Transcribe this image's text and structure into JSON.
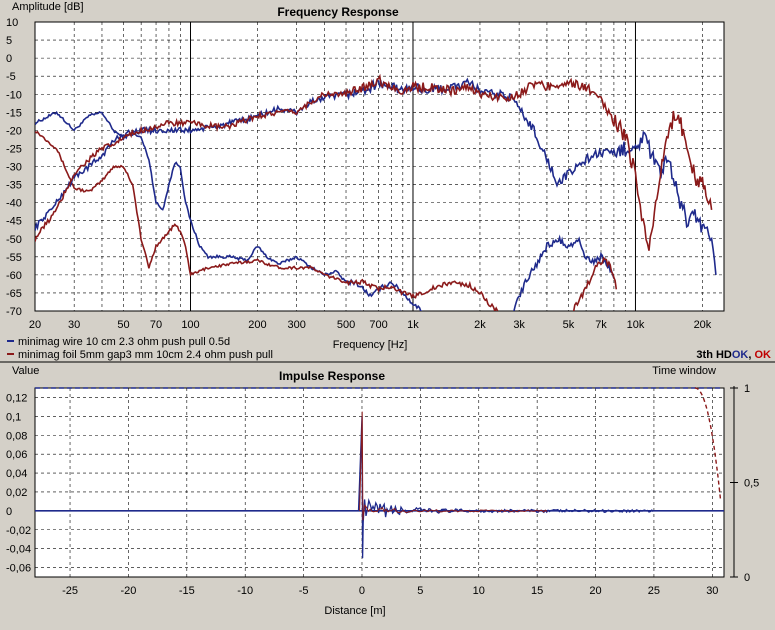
{
  "colors": {
    "series1": "#1f2a8c",
    "series2": "#8b1a1a",
    "ok": "#c00000",
    "okAlt": "#1f2a8c"
  },
  "chart_data": [
    {
      "type": "line",
      "title": "Frequency Response",
      "xlabel": "Frequency [Hz]",
      "ylabel": "Amplitude [dB]",
      "xscale": "log",
      "xlim": [
        20,
        25000
      ],
      "ylim": [
        -70,
        10
      ],
      "grid": true,
      "xticks": [
        {
          "v": 20,
          "t": "20"
        },
        {
          "v": 30,
          "t": "30"
        },
        {
          "v": 50,
          "t": "50"
        },
        {
          "v": 70,
          "t": "70"
        },
        {
          "v": 100,
          "t": "100"
        },
        {
          "v": 200,
          "t": "200"
        },
        {
          "v": 300,
          "t": "300"
        },
        {
          "v": 500,
          "t": "500"
        },
        {
          "v": 700,
          "t": "700"
        },
        {
          "v": 1000,
          "t": "1k"
        },
        {
          "v": 2000,
          "t": "2k"
        },
        {
          "v": 3000,
          "t": "3k"
        },
        {
          "v": 5000,
          "t": "5k"
        },
        {
          "v": 7000,
          "t": "7k"
        },
        {
          "v": 10000,
          "t": "10k"
        },
        {
          "v": 20000,
          "t": "20k"
        }
      ],
      "yticks": [
        10,
        5,
        0,
        -5,
        -10,
        -15,
        -20,
        -25,
        -30,
        -35,
        -40,
        -45,
        -50,
        -55,
        -60,
        -65,
        -70
      ],
      "legend": "bottom-left",
      "status": {
        "prefix": "3th HD",
        "ok1": "OK",
        "sep": ", ",
        "ok2": "OK"
      },
      "series": [
        {
          "name": "minimag wire 10 cm 2.3 ohm push pull 0.5d",
          "color": "#1f2a8c",
          "points": [
            [
              20,
              -18
            ],
            [
              25,
              -15
            ],
            [
              30,
              -20
            ],
            [
              35,
              -16
            ],
            [
              40,
              -15
            ],
            [
              45,
              -20
            ],
            [
              50,
              -22
            ],
            [
              55,
              -21
            ],
            [
              60,
              -22
            ],
            [
              65,
              -28
            ],
            [
              70,
              -40
            ],
            [
              75,
              -42
            ],
            [
              80,
              -35
            ],
            [
              85,
              -29
            ],
            [
              90,
              -30
            ],
            [
              95,
              -40
            ],
            [
              100,
              -45
            ],
            [
              110,
              -52
            ],
            [
              120,
              -55
            ],
            [
              150,
              -55
            ],
            [
              180,
              -56
            ],
            [
              200,
              -52
            ],
            [
              220,
              -55
            ],
            [
              250,
              -57
            ],
            [
              300,
              -55
            ],
            [
              350,
              -58
            ],
            [
              400,
              -60
            ],
            [
              450,
              -59
            ],
            [
              500,
              -62
            ],
            [
              550,
              -62
            ],
            [
              600,
              -64
            ],
            [
              650,
              -66
            ],
            [
              700,
              -64
            ],
            [
              800,
              -62
            ],
            [
              900,
              -65
            ],
            [
              1000,
              -68
            ],
            [
              1100,
              -70
            ]
          ]
        },
        {
          "name": "minimag foil 5mm gap3 mm 10cm 2.4 ohm push pull",
          "color": "#8b1a1a",
          "points": [
            [
              20,
              -20
            ],
            [
              25,
              -25
            ],
            [
              30,
              -36
            ],
            [
              35,
              -37
            ],
            [
              40,
              -34
            ],
            [
              45,
              -30
            ],
            [
              50,
              -30
            ],
            [
              55,
              -35
            ],
            [
              60,
              -50
            ],
            [
              65,
              -58
            ],
            [
              70,
              -52
            ],
            [
              75,
              -50
            ],
            [
              80,
              -48
            ],
            [
              85,
              -46
            ],
            [
              90,
              -48
            ],
            [
              95,
              -52
            ],
            [
              100,
              -60
            ],
            [
              120,
              -58
            ],
            [
              150,
              -57
            ],
            [
              200,
              -56
            ],
            [
              250,
              -58
            ],
            [
              300,
              -58
            ],
            [
              350,
              -58
            ],
            [
              400,
              -60
            ],
            [
              500,
              -62
            ],
            [
              600,
              -62
            ],
            [
              700,
              -64
            ],
            [
              800,
              -63
            ],
            [
              900,
              -65
            ],
            [
              1000,
              -66
            ],
            [
              1200,
              -64
            ],
            [
              1500,
              -62
            ],
            [
              1800,
              -63
            ],
            [
              2000,
              -65
            ],
            [
              2200,
              -68
            ],
            [
              2400,
              -70
            ]
          ]
        },
        {
          "name": "minimag wire 10 cm 2.3 ohm push pull 0.5d",
          "color": "#1f2a8c",
          "points": [
            [
              20,
              -47
            ],
            [
              25,
              -40
            ],
            [
              30,
              -33
            ],
            [
              35,
              -30
            ],
            [
              40,
              -27
            ],
            [
              45,
              -23
            ],
            [
              50,
              -21
            ],
            [
              60,
              -20
            ],
            [
              70,
              -20
            ],
            [
              80,
              -20
            ],
            [
              100,
              -20
            ],
            [
              130,
              -19
            ],
            [
              150,
              -18
            ],
            [
              180,
              -17
            ],
            [
              200,
              -16
            ],
            [
              250,
              -14
            ],
            [
              300,
              -15
            ],
            [
              350,
              -12
            ],
            [
              400,
              -11
            ],
            [
              500,
              -10
            ],
            [
              600,
              -9
            ],
            [
              700,
              -7
            ],
            [
              800,
              -8
            ],
            [
              900,
              -9
            ],
            [
              1000,
              -8
            ],
            [
              1200,
              -9
            ],
            [
              1500,
              -8
            ],
            [
              1800,
              -7
            ],
            [
              2000,
              -9
            ],
            [
              2200,
              -10
            ],
            [
              2500,
              -10
            ],
            [
              2800,
              -11
            ],
            [
              3000,
              -14
            ],
            [
              3500,
              -20
            ],
            [
              4000,
              -28
            ],
            [
              4500,
              -35
            ],
            [
              5000,
              -32
            ],
            [
              6000,
              -28
            ],
            [
              7000,
              -26
            ],
            [
              8000,
              -27
            ],
            [
              9000,
              -25
            ],
            [
              10000,
              -24
            ],
            [
              11000,
              -22
            ],
            [
              12000,
              -28
            ],
            [
              13000,
              -32
            ],
            [
              14000,
              -28
            ],
            [
              15000,
              -35
            ],
            [
              17000,
              -45
            ],
            [
              18000,
              -42
            ],
            [
              19000,
              -45
            ],
            [
              20000,
              -47
            ],
            [
              21000,
              -46
            ],
            [
              22000,
              -52
            ],
            [
              23000,
              -60
            ]
          ]
        },
        {
          "name": "minimag foil 5mm gap3 mm 10cm 2.4 ohm push pull",
          "color": "#8b1a1a",
          "points": [
            [
              20,
              -50
            ],
            [
              25,
              -42
            ],
            [
              30,
              -32
            ],
            [
              35,
              -28
            ],
            [
              40,
              -25
            ],
            [
              45,
              -24
            ],
            [
              50,
              -22
            ],
            [
              60,
              -20
            ],
            [
              70,
              -19
            ],
            [
              80,
              -18
            ],
            [
              100,
              -18
            ],
            [
              130,
              -19
            ],
            [
              150,
              -19
            ],
            [
              180,
              -17
            ],
            [
              200,
              -16
            ],
            [
              250,
              -15
            ],
            [
              300,
              -15
            ],
            [
              350,
              -12
            ],
            [
              400,
              -10
            ],
            [
              500,
              -10
            ],
            [
              600,
              -8
            ],
            [
              700,
              -6
            ],
            [
              800,
              -8
            ],
            [
              900,
              -9
            ],
            [
              1000,
              -8
            ],
            [
              1200,
              -8
            ],
            [
              1500,
              -9
            ],
            [
              1800,
              -8
            ],
            [
              2000,
              -10
            ],
            [
              2500,
              -11
            ],
            [
              3000,
              -10
            ],
            [
              3500,
              -7
            ],
            [
              4000,
              -8
            ],
            [
              4500,
              -7
            ],
            [
              5000,
              -7
            ],
            [
              6000,
              -8
            ],
            [
              7000,
              -12
            ],
            [
              8000,
              -17
            ],
            [
              9000,
              -22
            ],
            [
              10000,
              -32
            ],
            [
              10500,
              -40
            ],
            [
              11000,
              -48
            ],
            [
              11500,
              -52
            ],
            [
              12000,
              -45
            ],
            [
              13000,
              -32
            ],
            [
              14000,
              -20
            ],
            [
              15000,
              -16
            ],
            [
              16000,
              -18
            ],
            [
              17000,
              -25
            ],
            [
              18000,
              -30
            ],
            [
              19000,
              -35
            ],
            [
              20000,
              -34
            ],
            [
              21000,
              -38
            ],
            [
              22000,
              -42
            ]
          ]
        }
      ],
      "curtail": [
        {
          "color": "#1f2a8c",
          "points": [
            [
              2800,
              -70
            ],
            [
              3200,
              -62
            ],
            [
              3600,
              -57
            ],
            [
              4000,
              -52
            ],
            [
              4500,
              -50
            ],
            [
              5000,
              -52
            ],
            [
              5500,
              -50
            ],
            [
              6000,
              -55
            ],
            [
              6500,
              -56
            ],
            [
              7000,
              -55
            ],
            [
              7500,
              -57
            ],
            [
              8000,
              -61
            ]
          ]
        },
        {
          "color": "#8b1a1a",
          "points": [
            [
              5200,
              -70
            ],
            [
              5700,
              -66
            ],
            [
              6200,
              -62
            ],
            [
              6700,
              -57
            ],
            [
              7200,
              -56
            ],
            [
              7600,
              -57
            ],
            [
              7900,
              -60
            ],
            [
              8200,
              -64
            ]
          ]
        }
      ]
    },
    {
      "type": "line",
      "title": "Impulse Response",
      "xlabel": "Distance [m]",
      "ylabel": "Value",
      "xlim": [
        -28,
        31
      ],
      "ylim": [
        -0.07,
        0.13
      ],
      "grid": true,
      "xticks": [
        -25,
        -20,
        -15,
        -10,
        -5,
        0,
        5,
        10,
        15,
        20,
        25,
        30
      ],
      "yticks": [
        {
          "v": 0.12,
          "t": "0,12"
        },
        {
          "v": 0.1,
          "t": "0,1"
        },
        {
          "v": 0.08,
          "t": "0,08"
        },
        {
          "v": 0.06,
          "t": "0,06"
        },
        {
          "v": 0.04,
          "t": "0,04"
        },
        {
          "v": 0.02,
          "t": "0,02"
        },
        {
          "v": 0,
          "t": "0"
        },
        {
          "v": -0.02,
          "t": "-0,02"
        },
        {
          "v": -0.04,
          "t": "-0,04"
        },
        {
          "v": -0.06,
          "t": "-0,06"
        }
      ],
      "right_axis_label": "Time window",
      "right_ticks": [
        {
          "v": 1,
          "t": "1"
        },
        {
          "v": 0.5,
          "t": "0,5"
        },
        {
          "v": 0,
          "t": "0"
        }
      ],
      "impulse_peak": 0.1,
      "impulse_trough": -0.05,
      "impulse_tail_end": 25
    }
  ]
}
